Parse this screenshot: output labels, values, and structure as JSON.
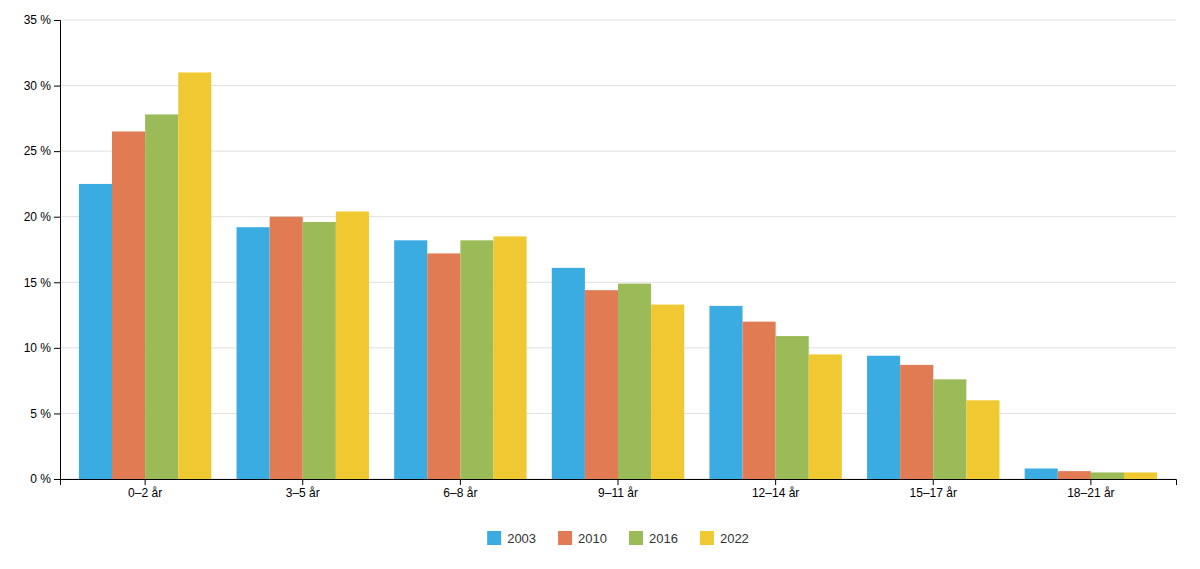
{
  "chart_data": {
    "type": "bar",
    "categories": [
      "0–2 år",
      "3–5 år",
      "6–8 år",
      "9–11 år",
      "12–14 år",
      "15–17 år",
      "18–21 år"
    ],
    "series": [
      {
        "name": "2003",
        "color": "#3AACE2",
        "values": [
          22.5,
          19.2,
          18.2,
          16.1,
          13.2,
          9.4,
          0.8
        ]
      },
      {
        "name": "2010",
        "color": "#E07B54",
        "values": [
          26.5,
          20.0,
          17.2,
          14.4,
          12.0,
          8.7,
          0.6
        ]
      },
      {
        "name": "2016",
        "color": "#9BBB59",
        "values": [
          27.8,
          19.6,
          18.2,
          14.9,
          10.9,
          7.6,
          0.5
        ]
      },
      {
        "name": "2022",
        "color": "#F0C832",
        "values": [
          31.0,
          20.4,
          18.5,
          13.3,
          9.5,
          6.0,
          0.5
        ]
      }
    ],
    "ylim": [
      0,
      35
    ],
    "yticks": [
      {
        "value": 0,
        "label": "0 %"
      },
      {
        "value": 5,
        "label": "5 %"
      },
      {
        "value": 10,
        "label": "10 %"
      },
      {
        "value": 15,
        "label": "15 %"
      },
      {
        "value": 20,
        "label": "20 %"
      },
      {
        "value": 25,
        "label": "25 %"
      },
      {
        "value": 30,
        "label": "30 %"
      },
      {
        "value": 35,
        "label": "35 %"
      }
    ],
    "grid": true,
    "legend": "bottom"
  }
}
